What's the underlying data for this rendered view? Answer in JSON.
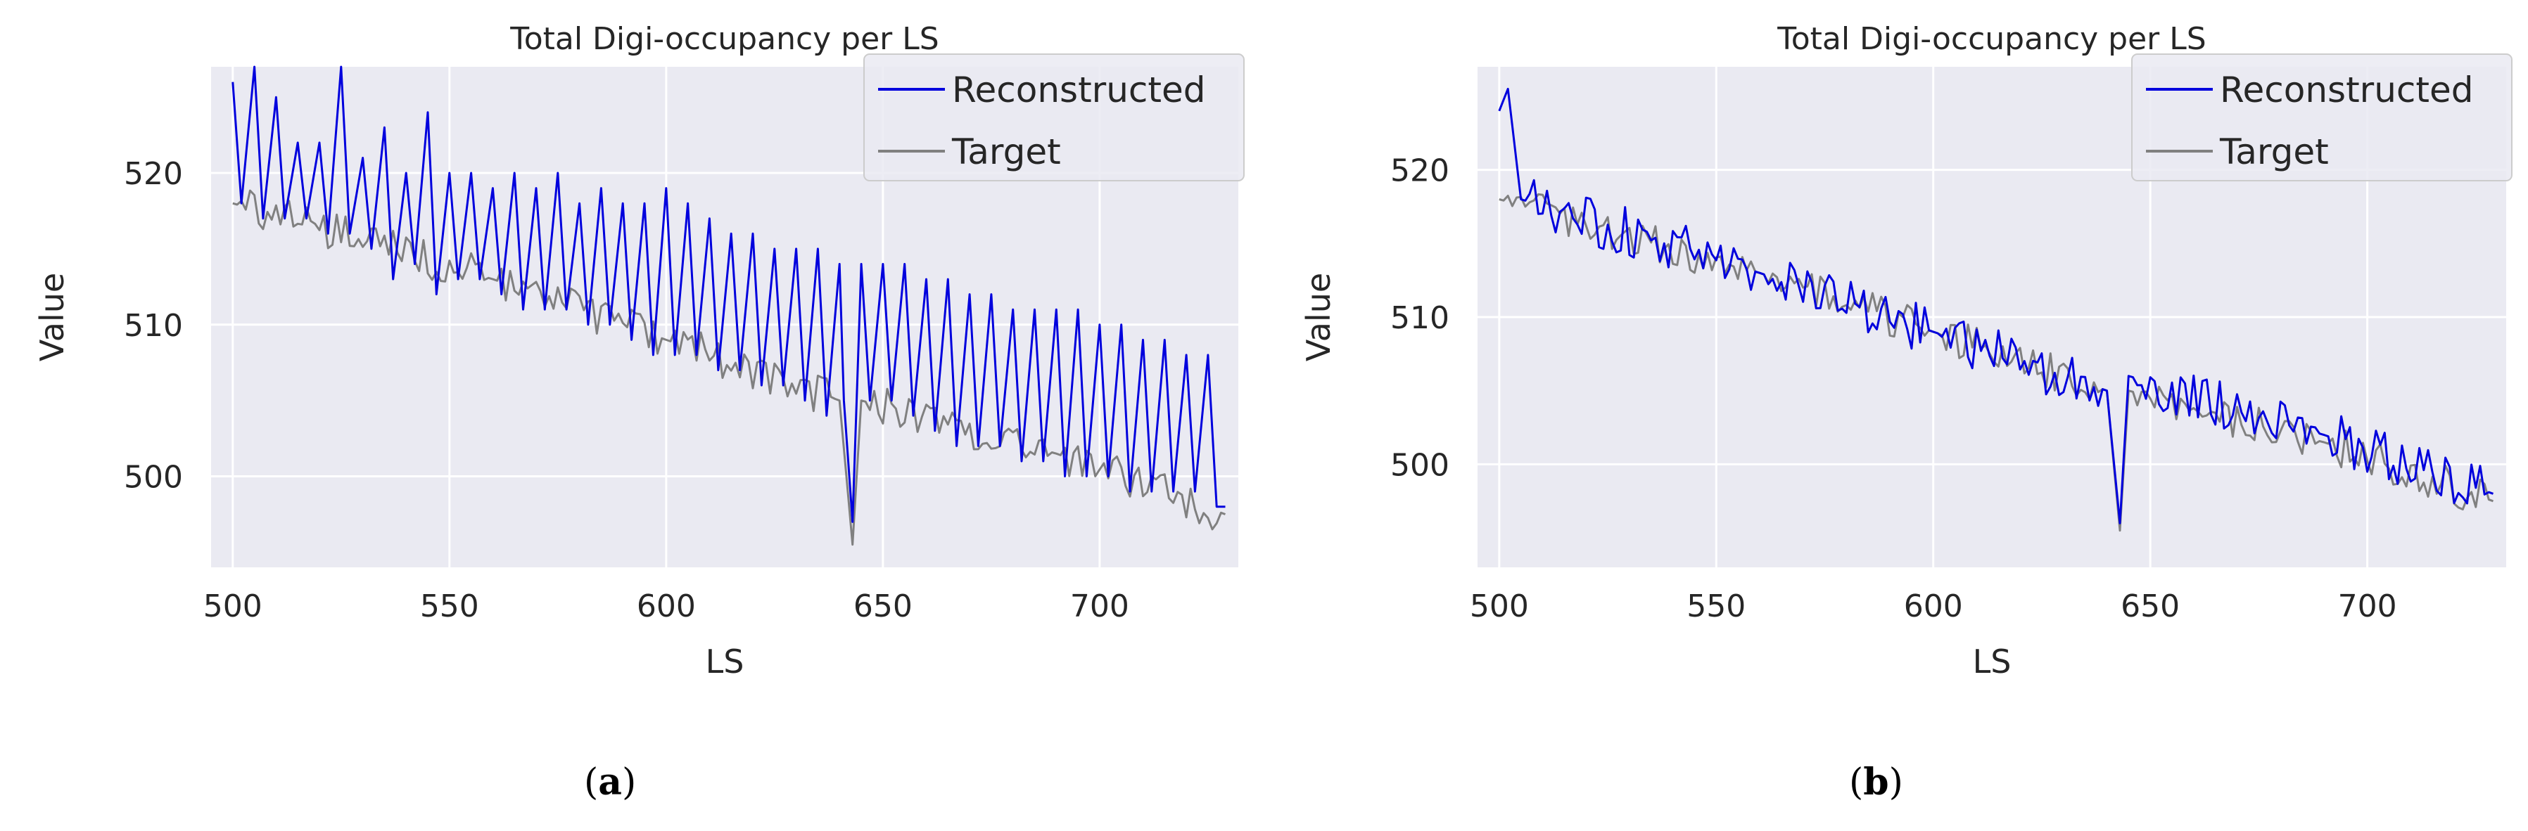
{
  "chart_data": [
    {
      "type": "line",
      "panel": "a",
      "caption_open": "(",
      "caption_letter": "a",
      "caption_close": ")",
      "title": "Total Digi-occupancy per LS",
      "xlabel": "LS",
      "ylabel": "Value",
      "xlim": [
        495,
        732
      ],
      "ylim": [
        494,
        527
      ],
      "xticks": [
        500,
        550,
        600,
        650,
        700
      ],
      "yticks": [
        500,
        510,
        520
      ],
      "grid": true,
      "legend_position": "top-right",
      "series": [
        {
          "name": "Reconstructed",
          "color": "#0000dd",
          "mode": "sawtooth",
          "x_start": 500,
          "x_end": 729,
          "peaks": [
            [
              500,
              526
            ],
            [
              505,
              527
            ],
            [
              510,
              525
            ],
            [
              515,
              522
            ],
            [
              520,
              522
            ],
            [
              525,
              527
            ],
            [
              530,
              521
            ],
            [
              535,
              523
            ],
            [
              540,
              520
            ],
            [
              545,
              524
            ],
            [
              550,
              520
            ],
            [
              555,
              520
            ],
            [
              560,
              519
            ],
            [
              565,
              520
            ],
            [
              570,
              519
            ],
            [
              575,
              520
            ],
            [
              580,
              518
            ],
            [
              585,
              519
            ],
            [
              590,
              518
            ],
            [
              595,
              518
            ],
            [
              600,
              519
            ],
            [
              605,
              518
            ],
            [
              610,
              517
            ],
            [
              615,
              516
            ],
            [
              620,
              516
            ],
            [
              625,
              515
            ],
            [
              630,
              515
            ],
            [
              635,
              515
            ],
            [
              640,
              514
            ],
            [
              645,
              514
            ],
            [
              650,
              514
            ],
            [
              655,
              514
            ],
            [
              660,
              513
            ],
            [
              665,
              513
            ],
            [
              670,
              512
            ],
            [
              675,
              512
            ],
            [
              680,
              511
            ],
            [
              685,
              511
            ],
            [
              690,
              511
            ],
            [
              695,
              511
            ],
            [
              700,
              510
            ],
            [
              705,
              510
            ],
            [
              710,
              509
            ],
            [
              715,
              509
            ],
            [
              720,
              508
            ],
            [
              725,
              508
            ]
          ],
          "troughs": [
            [
              502,
              518
            ],
            [
              507,
              517
            ],
            [
              512,
              517
            ],
            [
              517,
              517
            ],
            [
              522,
              516
            ],
            [
              527,
              516
            ],
            [
              532,
              515
            ],
            [
              537,
              513
            ],
            [
              542,
              514
            ],
            [
              547,
              512
            ],
            [
              552,
              513
            ],
            [
              557,
              513
            ],
            [
              562,
              512
            ],
            [
              567,
              511
            ],
            [
              572,
              511
            ],
            [
              577,
              511
            ],
            [
              582,
              510
            ],
            [
              587,
              510
            ],
            [
              592,
              509
            ],
            [
              597,
              508
            ],
            [
              602,
              508
            ],
            [
              607,
              508
            ],
            [
              612,
              507
            ],
            [
              617,
              507
            ],
            [
              622,
              506
            ],
            [
              627,
              506
            ],
            [
              632,
              505
            ],
            [
              637,
              504
            ],
            [
              641,
              505
            ],
            [
              643,
              497
            ],
            [
              647,
              505
            ],
            [
              652,
              505
            ],
            [
              657,
              504
            ],
            [
              662,
              503
            ],
            [
              667,
              502
            ],
            [
              672,
              502
            ],
            [
              677,
              502
            ],
            [
              682,
              501
            ],
            [
              687,
              501
            ],
            [
              692,
              500
            ],
            [
              697,
              500
            ],
            [
              702,
              500
            ],
            [
              707,
              499
            ],
            [
              712,
              499
            ],
            [
              717,
              499
            ],
            [
              722,
              499
            ],
            [
              727,
              498
            ],
            [
              729,
              498
            ]
          ]
        },
        {
          "name": "Target",
          "color": "#808080",
          "mode": "noisy-trend",
          "x_start": 500,
          "x_end": 729,
          "trend": [
            [
              500,
              518
            ],
            [
              560,
              513
            ],
            [
              600,
              509
            ],
            [
              640,
              505
            ],
            [
              643,
              495.5
            ],
            [
              645,
              505
            ],
            [
              690,
              501.5
            ],
            [
              729,
              497.5
            ]
          ]
        }
      ]
    },
    {
      "type": "line",
      "panel": "b",
      "caption_open": "(",
      "caption_letter": "b",
      "caption_close": ")",
      "title": "Total Digi-occupancy per LS",
      "xlabel": "LS",
      "ylabel": "Value",
      "xlim": [
        495,
        732
      ],
      "ylim": [
        493,
        527
      ],
      "xticks": [
        500,
        550,
        600,
        650,
        700
      ],
      "yticks": [
        500,
        510,
        520
      ],
      "grid": true,
      "legend_position": "top-right",
      "series": [
        {
          "name": "Reconstructed",
          "color": "#0000dd",
          "mode": "noisy-trend",
          "x_start": 500,
          "x_end": 729,
          "trend": [
            [
              500,
              524
            ],
            [
              502,
              525.5
            ],
            [
              505,
              518
            ],
            [
              560,
              513
            ],
            [
              600,
              509
            ],
            [
              640,
              505
            ],
            [
              643,
              496
            ],
            [
              645,
              506
            ],
            [
              690,
              502
            ],
            [
              729,
              498
            ]
          ]
        },
        {
          "name": "Target",
          "color": "#808080",
          "mode": "noisy-trend",
          "x_start": 500,
          "x_end": 729,
          "trend": [
            [
              500,
              518
            ],
            [
              560,
              513
            ],
            [
              600,
              509
            ],
            [
              640,
              505
            ],
            [
              643,
              495.5
            ],
            [
              645,
              505
            ],
            [
              690,
              501.5
            ],
            [
              729,
              497.5
            ]
          ]
        }
      ]
    }
  ]
}
